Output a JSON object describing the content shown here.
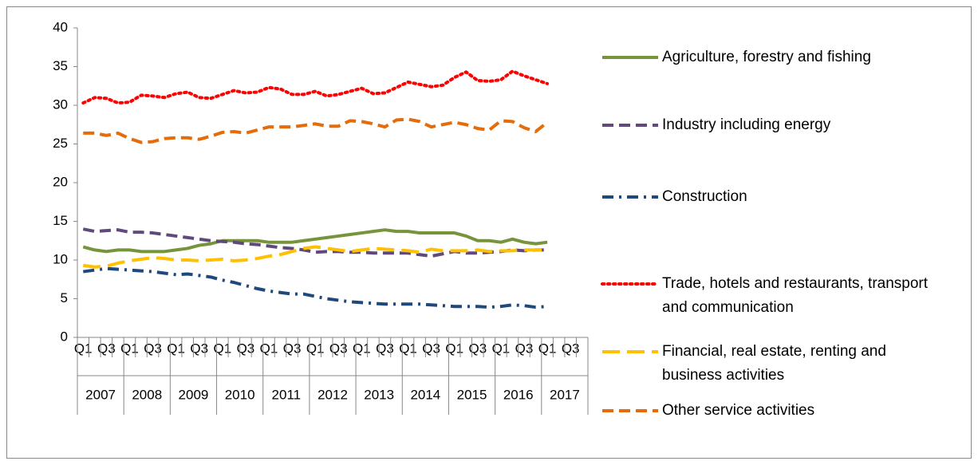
{
  "chart_data": {
    "type": "line",
    "categories": [
      "Q1",
      null,
      "Q3",
      null,
      "Q1",
      null,
      "Q3",
      null,
      "Q1",
      null,
      "Q3",
      null,
      "Q1",
      null,
      "Q3",
      null,
      "Q1",
      null,
      "Q3",
      null,
      "Q1",
      null,
      "Q3",
      null,
      "Q1",
      null,
      "Q3",
      null,
      "Q1",
      null,
      "Q3",
      null,
      "Q1",
      null,
      "Q3",
      null,
      "Q1",
      null,
      "Q3",
      null,
      "Q1",
      null,
      "Q3",
      null
    ],
    "groups": [
      "2007",
      "2008",
      "2009",
      "2010",
      "2011",
      "2012",
      "2013",
      "2014",
      "2015",
      "2016",
      "2017"
    ],
    "ylim": [
      0,
      40
    ],
    "yticks": [
      0,
      5,
      10,
      15,
      20,
      25,
      30,
      35,
      40
    ],
    "grid": false,
    "legend": "right",
    "series": [
      {
        "name": "Agriculture, forestry and fishing",
        "color": "#77933c",
        "style": "solid",
        "values": [
          11.7,
          11.3,
          11.1,
          11.3,
          11.3,
          11.1,
          11.1,
          11.1,
          11.3,
          11.5,
          11.9,
          12.1,
          12.5,
          12.5,
          12.5,
          12.5,
          12.3,
          12.3,
          12.3,
          12.5,
          12.7,
          12.9,
          13.1,
          13.3,
          13.5,
          13.7,
          13.9,
          13.7,
          13.7,
          13.5,
          13.5,
          13.5,
          13.5,
          13.1,
          12.5,
          12.5,
          12.3,
          12.7,
          12.3,
          12.1,
          12.3,
          null,
          null,
          null
        ]
      },
      {
        "name": "Industry including energy",
        "color": "#604a7b",
        "style": "dash",
        "values": [
          14.0,
          13.7,
          13.8,
          13.9,
          13.6,
          13.6,
          13.5,
          13.3,
          13.1,
          12.9,
          12.7,
          12.5,
          12.4,
          12.3,
          12.1,
          12.0,
          11.8,
          11.6,
          11.5,
          11.3,
          11.0,
          11.1,
          11.1,
          11.0,
          11.0,
          10.9,
          10.9,
          10.9,
          10.9,
          10.7,
          10.5,
          10.8,
          11.1,
          10.9,
          10.9,
          11.0,
          11.1,
          11.3,
          11.2,
          11.3,
          11.3,
          null,
          null,
          null
        ]
      },
      {
        "name": "Construction",
        "color": "#1f497d",
        "style": "dashdot",
        "values": [
          8.5,
          8.7,
          8.9,
          8.8,
          8.7,
          8.6,
          8.5,
          8.3,
          8.1,
          8.2,
          8.0,
          7.8,
          7.4,
          7.1,
          6.7,
          6.3,
          6.0,
          5.8,
          5.6,
          5.6,
          5.3,
          5.0,
          4.8,
          4.6,
          4.5,
          4.4,
          4.3,
          4.3,
          4.3,
          4.3,
          4.2,
          4.1,
          4.0,
          4.0,
          4.0,
          3.9,
          4.0,
          4.2,
          4.1,
          3.9,
          4.0,
          null,
          null,
          null
        ]
      },
      {
        "name": "Trade, hotels and restaurants, transport and communication",
        "color": "#ff0000",
        "style": "dot",
        "values": [
          30.3,
          31.0,
          30.9,
          30.3,
          30.4,
          31.3,
          31.2,
          31.0,
          31.5,
          31.7,
          31.0,
          30.9,
          31.4,
          31.9,
          31.6,
          31.7,
          32.3,
          32.1,
          31.4,
          31.4,
          31.8,
          31.2,
          31.4,
          31.8,
          32.2,
          31.5,
          31.6,
          32.3,
          33.0,
          32.7,
          32.4,
          32.6,
          33.6,
          34.3,
          33.2,
          33.1,
          33.3,
          34.4,
          33.8,
          33.3,
          32.8,
          null,
          null,
          null
        ]
      },
      {
        "name": "Financial, real estate, renting and business activities",
        "color": "#ffc000",
        "style": "longdash",
        "values": [
          9.3,
          9.1,
          9.2,
          9.6,
          9.9,
          10.1,
          10.3,
          10.2,
          10.0,
          10.0,
          9.9,
          10.0,
          10.1,
          9.9,
          10.0,
          10.2,
          10.5,
          10.7,
          11.1,
          11.5,
          11.7,
          11.5,
          11.3,
          11.1,
          11.3,
          11.5,
          11.4,
          11.3,
          11.2,
          11.0,
          11.4,
          11.2,
          11.2,
          11.2,
          11.3,
          11.1,
          11.2,
          11.2,
          11.3,
          11.3,
          11.3,
          null,
          null,
          null
        ]
      },
      {
        "name": "Other service activities",
        "color": "#e46c0a",
        "style": "dash",
        "values": [
          26.4,
          26.4,
          26.1,
          26.4,
          25.7,
          25.2,
          25.3,
          25.7,
          25.8,
          25.8,
          25.6,
          26.0,
          26.5,
          26.6,
          26.4,
          26.8,
          27.2,
          27.2,
          27.2,
          27.4,
          27.6,
          27.3,
          27.3,
          28.0,
          27.9,
          27.6,
          27.2,
          28.1,
          28.2,
          27.9,
          27.2,
          27.5,
          27.8,
          27.5,
          27.0,
          26.8,
          28.0,
          27.9,
          27.1,
          26.6,
          27.8,
          null,
          null,
          null
        ]
      }
    ]
  }
}
